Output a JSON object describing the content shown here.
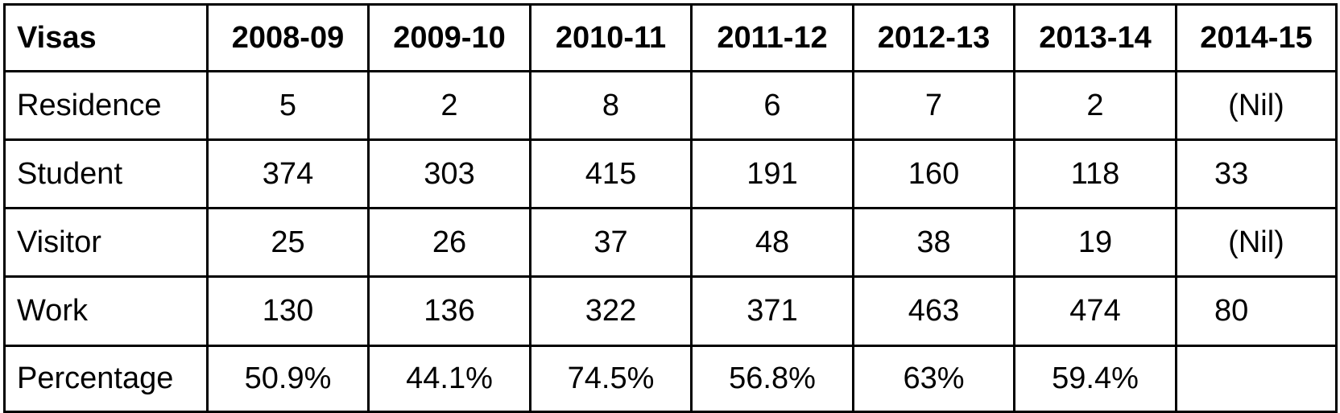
{
  "table": {
    "header": [
      "Visas",
      "2008-09",
      "2009-10",
      "2010-11",
      "2011-12",
      "2012-13",
      "2013-14",
      "2014-15"
    ],
    "rows": [
      [
        "Residence",
        5,
        2,
        8,
        6,
        7,
        2,
        "(Nil)"
      ],
      [
        "Student",
        374,
        303,
        415,
        191,
        160,
        118,
        33
      ],
      [
        "Visitor",
        25,
        26,
        37,
        48,
        38,
        19,
        "(Nil)"
      ],
      [
        "Work",
        130,
        136,
        322,
        371,
        463,
        474,
        80
      ],
      [
        "Percentage",
        "50.9%",
        "44.1%",
        "74.5%",
        "56.8%",
        "63%",
        "59.4%"
      ]
    ]
  }
}
